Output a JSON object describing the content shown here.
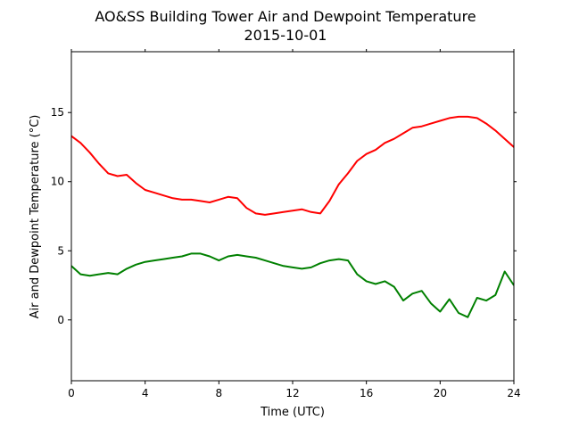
{
  "chart_data": {
    "type": "line",
    "title": "AO&SS Building Tower Air and Dewpoint Temperature",
    "subtitle": "2015-10-01",
    "xlabel": "Time (UTC)",
    "ylabel": "Air and Dewpoint Temperature (°C)",
    "xlim": [
      0,
      24
    ],
    "ylim": [
      -4.4,
      19.4
    ],
    "xticks": [
      0,
      4,
      8,
      12,
      16,
      20,
      24
    ],
    "yticks": [
      0,
      5,
      10,
      15
    ],
    "grid": false,
    "series": [
      {
        "color": "#ff0000",
        "x": [
          0,
          0.5,
          1,
          1.5,
          2,
          2.5,
          3,
          3.5,
          4,
          4.5,
          5,
          5.5,
          6,
          6.5,
          7,
          7.5,
          8,
          8.5,
          9,
          9.5,
          10,
          10.5,
          11,
          11.5,
          12,
          12.5,
          13,
          13.5,
          14,
          14.5,
          15,
          15.5,
          16,
          16.5,
          17,
          17.5,
          18,
          18.5,
          19,
          19.5,
          20,
          20.5,
          21,
          21.5,
          22,
          22.5,
          23,
          23.5,
          24
        ],
        "values": [
          13.3,
          12.8,
          12.1,
          11.3,
          10.6,
          10.4,
          10.5,
          9.9,
          9.4,
          9.2,
          9.0,
          8.8,
          8.7,
          8.7,
          8.6,
          8.5,
          8.7,
          8.9,
          8.8,
          8.1,
          7.7,
          7.6,
          7.7,
          7.8,
          7.9,
          8.0,
          7.8,
          7.7,
          8.6,
          9.8,
          10.6,
          11.5,
          12.0,
          12.3,
          12.8,
          13.1,
          13.5,
          13.9,
          14.0,
          14.2,
          14.4,
          14.6,
          14.7,
          14.7,
          14.6,
          14.2,
          13.7,
          13.1,
          12.5
        ]
      },
      {
        "color": "#008000",
        "x": [
          0,
          0.5,
          1,
          1.5,
          2,
          2.5,
          3,
          3.5,
          4,
          4.5,
          5,
          5.5,
          6,
          6.5,
          7,
          7.5,
          8,
          8.5,
          9,
          9.5,
          10,
          10.5,
          11,
          11.5,
          12,
          12.5,
          13,
          13.5,
          14,
          14.5,
          15,
          15.5,
          16,
          16.5,
          17,
          17.5,
          18,
          18.5,
          19,
          19.5,
          20,
          20.5,
          21,
          21.5,
          22,
          22.5,
          23,
          23.5,
          24
        ],
        "values": [
          3.9,
          3.3,
          3.2,
          3.3,
          3.4,
          3.3,
          3.7,
          4.0,
          4.2,
          4.3,
          4.4,
          4.5,
          4.6,
          4.8,
          4.8,
          4.6,
          4.3,
          4.6,
          4.7,
          4.6,
          4.5,
          4.3,
          4.1,
          3.9,
          3.8,
          3.7,
          3.8,
          4.1,
          4.3,
          4.4,
          4.3,
          3.3,
          2.8,
          2.6,
          2.8,
          2.4,
          1.4,
          1.9,
          2.1,
          1.2,
          0.6,
          1.5,
          0.5,
          0.2,
          1.6,
          1.4,
          1.8,
          3.5,
          2.5
        ]
      }
    ]
  }
}
